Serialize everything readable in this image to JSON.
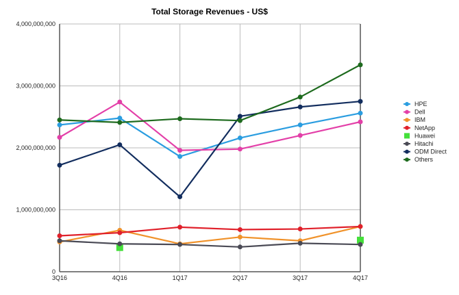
{
  "chart_data": {
    "type": "line",
    "title": "Total Storage Revenues - US$",
    "xlabel": "",
    "ylabel": "",
    "categories": [
      "3Q16",
      "4Q16",
      "1Q17",
      "2Q17",
      "3Q17",
      "4Q17"
    ],
    "ylim": [
      0,
      4000000000
    ],
    "yticks": [
      0,
      1000000000,
      2000000000,
      3000000000,
      4000000000
    ],
    "ytick_labels": [
      "0",
      "1,000,000,000",
      "2,000,000,000",
      "3,000,000,000",
      "4,000,000,000"
    ],
    "grid": true,
    "legend_position": "right",
    "series": [
      {
        "name": "HPE",
        "color": "#2a9de0",
        "marker": "circle",
        "values": [
          2370000000,
          2480000000,
          1860000000,
          2160000000,
          2370000000,
          2560000000
        ]
      },
      {
        "name": "Dell",
        "color": "#e33fa8",
        "marker": "circle",
        "values": [
          2170000000,
          2740000000,
          1960000000,
          1980000000,
          2200000000,
          2420000000
        ]
      },
      {
        "name": "IBM",
        "color": "#f0922a",
        "marker": "circle",
        "values": [
          480000000,
          670000000,
          450000000,
          560000000,
          500000000,
          730000000
        ]
      },
      {
        "name": "NetApp",
        "color": "#e0202a",
        "marker": "circle",
        "values": [
          580000000,
          630000000,
          720000000,
          680000000,
          690000000,
          730000000
        ]
      },
      {
        "name": "Huawei",
        "color": "#44e03a",
        "marker": "square",
        "values": [
          null,
          390000000,
          null,
          null,
          null,
          510000000
        ]
      },
      {
        "name": "Hitachi",
        "color": "#4a4a55",
        "marker": "circle",
        "values": [
          500000000,
          450000000,
          440000000,
          400000000,
          460000000,
          440000000
        ]
      },
      {
        "name": "ODM Direct",
        "color": "#122d5e",
        "marker": "circle",
        "values": [
          1720000000,
          2050000000,
          1210000000,
          2510000000,
          2660000000,
          2750000000
        ]
      },
      {
        "name": "Others",
        "color": "#1d6a1d",
        "marker": "circle",
        "values": [
          2450000000,
          2410000000,
          2470000000,
          2440000000,
          2820000000,
          3340000000
        ]
      }
    ]
  }
}
